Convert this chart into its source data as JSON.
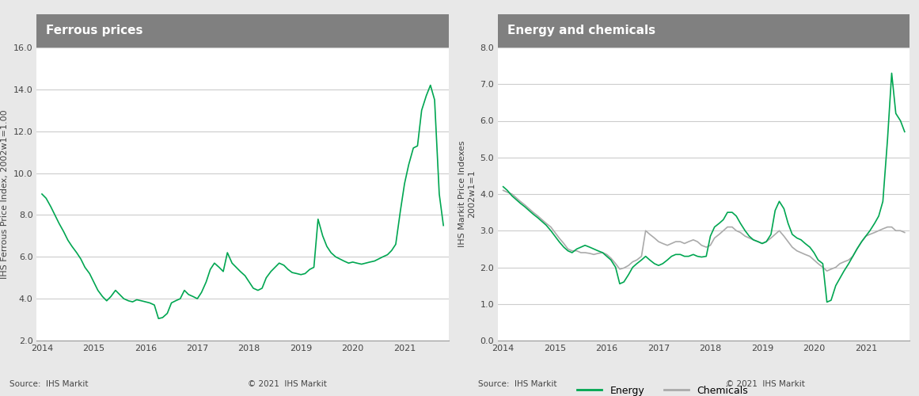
{
  "title_left": "Ferrous prices",
  "title_right": "Energy and chemicals",
  "ylabel_left": "IHS Ferrous Price Index, 2002w1=1.00",
  "ylabel_right": "IHS Markit Price Indexes\n2002w1=1",
  "source_text": "Source:  IHS Markit",
  "copyright_text": "© 2021  IHS Markit",
  "title_bg_color": "#808080",
  "title_text_color": "#ffffff",
  "plot_bg_color": "#ffffff",
  "outer_bg_color": "#e8e8e8",
  "line_color_green": "#00a651",
  "line_color_gray": "#aaaaaa",
  "grid_color": "#cccccc",
  "axis_color": "#555555",
  "ylim_left": [
    2.0,
    16.0
  ],
  "yticks_left": [
    2.0,
    4.0,
    6.0,
    8.0,
    10.0,
    12.0,
    14.0,
    16.0
  ],
  "ylim_right": [
    0.0,
    8.0
  ],
  "yticks_right": [
    0.0,
    1.0,
    2.0,
    3.0,
    4.0,
    5.0,
    6.0,
    7.0,
    8.0
  ],
  "ferrous_x": [
    2014.0,
    2014.08,
    2014.17,
    2014.25,
    2014.33,
    2014.42,
    2014.5,
    2014.58,
    2014.67,
    2014.75,
    2014.83,
    2014.92,
    2015.0,
    2015.08,
    2015.17,
    2015.25,
    2015.33,
    2015.42,
    2015.5,
    2015.58,
    2015.67,
    2015.75,
    2015.83,
    2015.92,
    2016.0,
    2016.08,
    2016.17,
    2016.25,
    2016.33,
    2016.42,
    2016.5,
    2016.58,
    2016.67,
    2016.75,
    2016.83,
    2016.92,
    2017.0,
    2017.08,
    2017.17,
    2017.25,
    2017.33,
    2017.42,
    2017.5,
    2017.58,
    2017.67,
    2017.75,
    2017.83,
    2017.92,
    2018.0,
    2018.08,
    2018.17,
    2018.25,
    2018.33,
    2018.42,
    2018.5,
    2018.58,
    2018.67,
    2018.75,
    2018.83,
    2018.92,
    2019.0,
    2019.08,
    2019.17,
    2019.25,
    2019.33,
    2019.42,
    2019.5,
    2019.58,
    2019.67,
    2019.75,
    2019.83,
    2019.92,
    2020.0,
    2020.08,
    2020.17,
    2020.25,
    2020.33,
    2020.42,
    2020.5,
    2020.58,
    2020.67,
    2020.75,
    2020.83,
    2020.92,
    2021.0,
    2021.08,
    2021.17,
    2021.25,
    2021.33,
    2021.42,
    2021.5,
    2021.58,
    2021.67,
    2021.75
  ],
  "ferrous_y": [
    9.0,
    8.8,
    8.4,
    8.0,
    7.6,
    7.2,
    6.8,
    6.5,
    6.2,
    5.9,
    5.5,
    5.2,
    4.8,
    4.4,
    4.1,
    3.9,
    4.1,
    4.4,
    4.2,
    4.0,
    3.9,
    3.85,
    3.95,
    3.9,
    3.85,
    3.8,
    3.7,
    3.05,
    3.1,
    3.3,
    3.8,
    3.9,
    4.0,
    4.4,
    4.2,
    4.1,
    4.0,
    4.3,
    4.8,
    5.4,
    5.7,
    5.5,
    5.3,
    6.2,
    5.7,
    5.5,
    5.3,
    5.1,
    4.8,
    4.5,
    4.4,
    4.5,
    5.0,
    5.3,
    5.5,
    5.7,
    5.6,
    5.4,
    5.25,
    5.2,
    5.15,
    5.2,
    5.4,
    5.5,
    7.8,
    7.0,
    6.5,
    6.2,
    6.0,
    5.9,
    5.8,
    5.7,
    5.75,
    5.7,
    5.65,
    5.7,
    5.75,
    5.8,
    5.9,
    6.0,
    6.1,
    6.3,
    6.6,
    8.2,
    9.5,
    10.4,
    11.2,
    11.3,
    13.0,
    13.7,
    14.2,
    13.5,
    9.0,
    7.5
  ],
  "energy_x": [
    2014.0,
    2014.08,
    2014.17,
    2014.25,
    2014.33,
    2014.42,
    2014.5,
    2014.58,
    2014.67,
    2014.75,
    2014.83,
    2014.92,
    2015.0,
    2015.08,
    2015.17,
    2015.25,
    2015.33,
    2015.42,
    2015.5,
    2015.58,
    2015.67,
    2015.75,
    2015.83,
    2015.92,
    2016.0,
    2016.08,
    2016.17,
    2016.25,
    2016.33,
    2016.42,
    2016.5,
    2016.58,
    2016.67,
    2016.75,
    2016.83,
    2016.92,
    2017.0,
    2017.08,
    2017.17,
    2017.25,
    2017.33,
    2017.42,
    2017.5,
    2017.58,
    2017.67,
    2017.75,
    2017.83,
    2017.92,
    2018.0,
    2018.08,
    2018.17,
    2018.25,
    2018.33,
    2018.42,
    2018.5,
    2018.58,
    2018.67,
    2018.75,
    2018.83,
    2018.92,
    2019.0,
    2019.08,
    2019.17,
    2019.25,
    2019.33,
    2019.42,
    2019.5,
    2019.58,
    2019.67,
    2019.75,
    2019.83,
    2019.92,
    2020.0,
    2020.08,
    2020.17,
    2020.25,
    2020.33,
    2020.42,
    2020.5,
    2020.58,
    2020.67,
    2020.75,
    2020.83,
    2020.92,
    2021.0,
    2021.08,
    2021.17,
    2021.25,
    2021.33,
    2021.42,
    2021.5,
    2021.58,
    2021.67,
    2021.75
  ],
  "energy_y": [
    4.2,
    4.1,
    3.95,
    3.85,
    3.75,
    3.65,
    3.55,
    3.45,
    3.35,
    3.25,
    3.15,
    3.0,
    2.85,
    2.7,
    2.55,
    2.45,
    2.4,
    2.5,
    2.55,
    2.6,
    2.55,
    2.5,
    2.45,
    2.4,
    2.3,
    2.2,
    2.0,
    1.55,
    1.6,
    1.8,
    2.0,
    2.1,
    2.2,
    2.3,
    2.2,
    2.1,
    2.05,
    2.1,
    2.2,
    2.3,
    2.35,
    2.35,
    2.3,
    2.3,
    2.35,
    2.3,
    2.28,
    2.3,
    2.85,
    3.1,
    3.2,
    3.3,
    3.5,
    3.5,
    3.4,
    3.2,
    3.0,
    2.85,
    2.75,
    2.7,
    2.65,
    2.7,
    2.9,
    3.55,
    3.8,
    3.6,
    3.2,
    2.9,
    2.8,
    2.75,
    2.65,
    2.55,
    2.4,
    2.2,
    2.1,
    1.05,
    1.1,
    1.5,
    1.7,
    1.9,
    2.1,
    2.3,
    2.5,
    2.7,
    2.85,
    3.0,
    3.2,
    3.4,
    3.8,
    5.5,
    7.3,
    6.2,
    6.0,
    5.7
  ],
  "chemicals_x": [
    2014.0,
    2014.08,
    2014.17,
    2014.25,
    2014.33,
    2014.42,
    2014.5,
    2014.58,
    2014.67,
    2014.75,
    2014.83,
    2014.92,
    2015.0,
    2015.08,
    2015.17,
    2015.25,
    2015.33,
    2015.42,
    2015.5,
    2015.58,
    2015.67,
    2015.75,
    2015.83,
    2015.92,
    2016.0,
    2016.08,
    2016.17,
    2016.25,
    2016.33,
    2016.42,
    2016.5,
    2016.58,
    2016.67,
    2016.75,
    2016.83,
    2016.92,
    2017.0,
    2017.08,
    2017.17,
    2017.25,
    2017.33,
    2017.42,
    2017.5,
    2017.58,
    2017.67,
    2017.75,
    2017.83,
    2017.92,
    2018.0,
    2018.08,
    2018.17,
    2018.25,
    2018.33,
    2018.42,
    2018.5,
    2018.58,
    2018.67,
    2018.75,
    2018.83,
    2018.92,
    2019.0,
    2019.08,
    2019.17,
    2019.25,
    2019.33,
    2019.42,
    2019.5,
    2019.58,
    2019.67,
    2019.75,
    2019.83,
    2019.92,
    2020.0,
    2020.08,
    2020.17,
    2020.25,
    2020.33,
    2020.42,
    2020.5,
    2020.58,
    2020.67,
    2020.75,
    2020.83,
    2020.92,
    2021.0,
    2021.08,
    2021.17,
    2021.25,
    2021.33,
    2021.42,
    2021.5,
    2021.58,
    2021.67,
    2021.75
  ],
  "chemicals_y": [
    4.1,
    4.05,
    4.0,
    3.9,
    3.8,
    3.7,
    3.6,
    3.5,
    3.4,
    3.3,
    3.2,
    3.1,
    2.95,
    2.8,
    2.65,
    2.5,
    2.45,
    2.45,
    2.4,
    2.4,
    2.38,
    2.35,
    2.38,
    2.4,
    2.35,
    2.25,
    2.1,
    1.95,
    1.98,
    2.05,
    2.15,
    2.2,
    2.3,
    3.0,
    2.9,
    2.8,
    2.7,
    2.65,
    2.6,
    2.65,
    2.7,
    2.7,
    2.65,
    2.7,
    2.75,
    2.7,
    2.6,
    2.55,
    2.6,
    2.8,
    2.9,
    3.0,
    3.1,
    3.1,
    3.0,
    2.95,
    2.85,
    2.8,
    2.75,
    2.7,
    2.65,
    2.7,
    2.8,
    2.9,
    3.0,
    2.85,
    2.7,
    2.55,
    2.45,
    2.4,
    2.35,
    2.3,
    2.2,
    2.1,
    2.0,
    1.9,
    1.95,
    2.0,
    2.1,
    2.15,
    2.2,
    2.3,
    2.5,
    2.7,
    2.85,
    2.9,
    2.95,
    3.0,
    3.05,
    3.1,
    3.1,
    3.0,
    3.0,
    2.95
  ],
  "xlim": [
    2013.9,
    2021.85
  ],
  "xticks": [
    2014,
    2015,
    2016,
    2017,
    2018,
    2019,
    2020,
    2021
  ],
  "legend_energy": "Energy",
  "legend_chemicals": "Chemicals"
}
